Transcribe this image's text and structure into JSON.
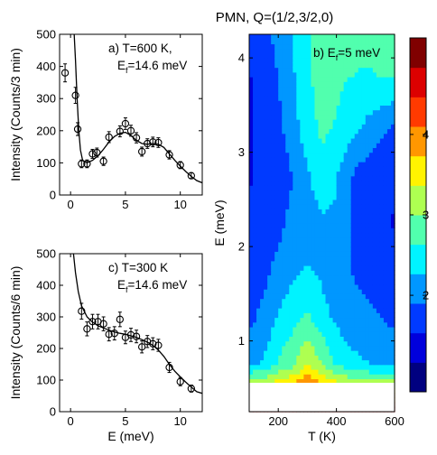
{
  "figure_title": "PMN, Q=(1/2,3/2,0)",
  "chart_data": [
    {
      "type": "scatter",
      "panel": "a",
      "annotation_line1": "a) T=600 K,",
      "annotation_line2_prefix": "E",
      "annotation_line2_sub": "f",
      "annotation_line2_rest": "=14.6 meV",
      "xlabel": "",
      "ylabel": "Intensity (Counts/3 min)",
      "xlim": [
        -1,
        12
      ],
      "ylim": [
        0,
        500
      ],
      "x_ticks": [
        0,
        5,
        10
      ],
      "y_ticks": [
        0,
        100,
        200,
        300,
        400,
        500
      ],
      "points": [
        {
          "x": -0.5,
          "y": 380,
          "err": 28
        },
        {
          "x": 0.45,
          "y": 310,
          "err": 25
        },
        {
          "x": 0.65,
          "y": 205,
          "err": 20
        },
        {
          "x": 1.0,
          "y": 97,
          "err": 12
        },
        {
          "x": 1.5,
          "y": 97,
          "err": 12
        },
        {
          "x": 2.0,
          "y": 128,
          "err": 14
        },
        {
          "x": 2.4,
          "y": 132,
          "err": 14
        },
        {
          "x": 3.0,
          "y": 105,
          "err": 13
        },
        {
          "x": 3.5,
          "y": 180,
          "err": 17
        },
        {
          "x": 4.5,
          "y": 198,
          "err": 17
        },
        {
          "x": 5.0,
          "y": 222,
          "err": 18
        },
        {
          "x": 5.5,
          "y": 200,
          "err": 17
        },
        {
          "x": 6.0,
          "y": 178,
          "err": 16
        },
        {
          "x": 6.5,
          "y": 135,
          "err": 14
        },
        {
          "x": 7.0,
          "y": 160,
          "err": 15
        },
        {
          "x": 7.5,
          "y": 165,
          "err": 15
        },
        {
          "x": 8.0,
          "y": 163,
          "err": 15
        },
        {
          "x": 9.0,
          "y": 125,
          "err": 13
        },
        {
          "x": 10.0,
          "y": 93,
          "err": 11
        },
        {
          "x": 11.0,
          "y": 60,
          "err": 9
        }
      ],
      "fit_curve": [
        [
          0.3,
          520
        ],
        [
          0.45,
          420
        ],
        [
          0.6,
          300
        ],
        [
          0.75,
          200
        ],
        [
          0.9,
          140
        ],
        [
          1.1,
          108
        ],
        [
          1.5,
          100
        ],
        [
          2.0,
          108
        ],
        [
          2.5,
          122
        ],
        [
          3.0,
          142
        ],
        [
          3.5,
          165
        ],
        [
          4.0,
          182
        ],
        [
          4.5,
          192
        ],
        [
          5.0,
          195
        ],
        [
          5.5,
          185
        ],
        [
          6.0,
          170
        ],
        [
          6.5,
          160
        ],
        [
          7.0,
          158
        ],
        [
          7.5,
          160
        ],
        [
          8.0,
          158
        ],
        [
          8.5,
          148
        ],
        [
          9.0,
          128
        ],
        [
          9.5,
          108
        ],
        [
          10.0,
          90
        ],
        [
          10.5,
          73
        ],
        [
          11.0,
          58
        ],
        [
          11.5,
          45
        ],
        [
          12.0,
          38
        ]
      ]
    },
    {
      "type": "scatter",
      "panel": "c",
      "annotation_line1": "c) T=300 K",
      "annotation_line2_prefix": "E",
      "annotation_line2_sub": "f",
      "annotation_line2_rest": "=14.6 meV",
      "xlabel": "E (meV)",
      "ylabel": "Intensity (Counts/6 min)",
      "xlim": [
        -1,
        12
      ],
      "ylim": [
        0,
        500
      ],
      "x_ticks": [
        0,
        5,
        10
      ],
      "y_ticks": [
        0,
        100,
        200,
        300,
        400,
        500
      ],
      "points": [
        {
          "x": 1.0,
          "y": 318,
          "err": 25
        },
        {
          "x": 1.5,
          "y": 262,
          "err": 22
        },
        {
          "x": 2.0,
          "y": 285,
          "err": 23
        },
        {
          "x": 2.5,
          "y": 285,
          "err": 23
        },
        {
          "x": 3.0,
          "y": 278,
          "err": 22
        },
        {
          "x": 3.5,
          "y": 245,
          "err": 21
        },
        {
          "x": 4.0,
          "y": 248,
          "err": 21
        },
        {
          "x": 4.5,
          "y": 292,
          "err": 23
        },
        {
          "x": 5.0,
          "y": 235,
          "err": 20
        },
        {
          "x": 5.5,
          "y": 243,
          "err": 21
        },
        {
          "x": 6.0,
          "y": 238,
          "err": 20
        },
        {
          "x": 6.5,
          "y": 205,
          "err": 19
        },
        {
          "x": 7.0,
          "y": 222,
          "err": 19
        },
        {
          "x": 7.5,
          "y": 215,
          "err": 19
        },
        {
          "x": 8.0,
          "y": 210,
          "err": 19
        },
        {
          "x": 9.0,
          "y": 140,
          "err": 16
        },
        {
          "x": 10.0,
          "y": 95,
          "err": 13
        },
        {
          "x": 11.0,
          "y": 73,
          "err": 11
        }
      ],
      "fit_curve": [
        [
          0.25,
          505
        ],
        [
          0.45,
          440
        ],
        [
          0.7,
          380
        ],
        [
          1.0,
          335
        ],
        [
          1.5,
          300
        ],
        [
          2.0,
          283
        ],
        [
          2.5,
          272
        ],
        [
          3.0,
          265
        ],
        [
          3.5,
          258
        ],
        [
          4.0,
          252
        ],
        [
          4.5,
          248
        ],
        [
          5.0,
          245
        ],
        [
          5.5,
          240
        ],
        [
          6.0,
          235
        ],
        [
          6.5,
          228
        ],
        [
          7.0,
          220
        ],
        [
          7.5,
          210
        ],
        [
          8.0,
          195
        ],
        [
          8.5,
          175
        ],
        [
          9.0,
          150
        ],
        [
          9.5,
          128
        ],
        [
          10.0,
          110
        ],
        [
          10.5,
          93
        ],
        [
          11.0,
          78
        ],
        [
          11.5,
          63
        ],
        [
          12.0,
          58
        ]
      ]
    },
    {
      "type": "heatmap",
      "panel": "b",
      "annotation_prefix": "b) E",
      "annotation_sub": "f",
      "annotation_rest": "=5 meV",
      "xlabel": "T (K)",
      "ylabel": "E (meV)",
      "xlim": [
        100,
        600
      ],
      "ylim": [
        0.25,
        4.25
      ],
      "x_ticks": [
        200,
        400,
        600
      ],
      "y_ticks": [
        1,
        2,
        3,
        4
      ],
      "temperatures": [
        100,
        150,
        200,
        250,
        300,
        350,
        400,
        450,
        500,
        550,
        600
      ],
      "energies": [
        0.25,
        0.75,
        1.25,
        1.75,
        2.25,
        2.75,
        3.25,
        3.75,
        4.25
      ],
      "intensity": [
        [
          5.0,
          4.9,
          4.8,
          4.9,
          5.0,
          4.9,
          4.8,
          4.7,
          4.6,
          4.6,
          4.6
        ],
        [
          2.2,
          2.3,
          2.7,
          2.9,
          3.4,
          3.0,
          2.6,
          2.4,
          2.3,
          2.2,
          2.2
        ],
        [
          1.8,
          2.0,
          2.3,
          2.5,
          2.7,
          2.4,
          2.2,
          2.0,
          2.0,
          1.9,
          1.8
        ],
        [
          1.7,
          1.8,
          2.0,
          2.2,
          2.3,
          2.2,
          2.0,
          1.9,
          1.8,
          1.7,
          1.7
        ],
        [
          1.6,
          1.7,
          1.8,
          2.0,
          2.1,
          2.2,
          2.2,
          1.9,
          1.7,
          1.6,
          1.5
        ],
        [
          1.5,
          1.6,
          1.7,
          1.9,
          2.2,
          2.5,
          2.3,
          1.9,
          1.7,
          1.6,
          1.6
        ],
        [
          1.5,
          1.6,
          1.8,
          2.1,
          2.5,
          2.7,
          2.6,
          2.4,
          2.2,
          2.0,
          1.8
        ],
        [
          1.5,
          1.7,
          1.9,
          2.2,
          2.6,
          2.7,
          2.7,
          2.6,
          2.5,
          2.6,
          2.6
        ],
        [
          1.6,
          1.8,
          2.0,
          2.3,
          2.6,
          2.7,
          2.8,
          2.9,
          2.9,
          2.9,
          2.9
        ]
      ],
      "colorbar": {
        "range": [
          0.8,
          5.2
        ],
        "ticks": [
          2,
          3,
          4
        ]
      }
    }
  ]
}
